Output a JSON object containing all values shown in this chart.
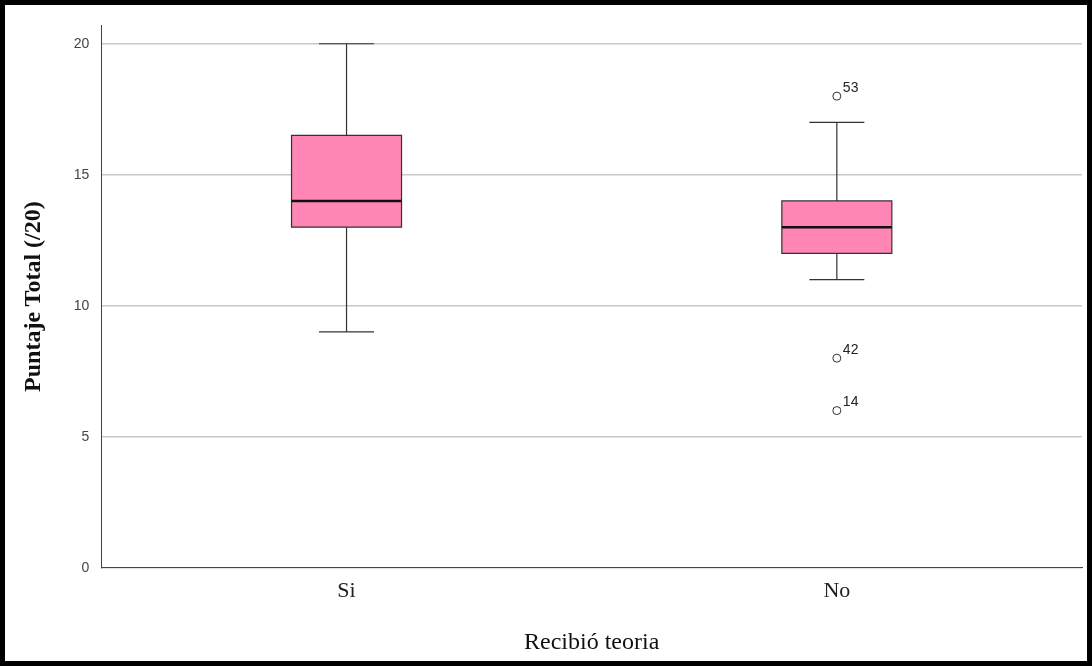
{
  "chart_data": {
    "type": "box",
    "categories": [
      "Si",
      "No"
    ],
    "xlabel": "Recibió teoria",
    "ylabel": "Puntaje Total (/20)",
    "series": [
      {
        "color": "#ff85b4",
        "boxes": [
          {
            "low": 9,
            "q1": 13,
            "median": 14,
            "q3": 16.5,
            "high": 20
          },
          {
            "low": 11,
            "q1": 12,
            "median": 13,
            "q3": 14,
            "high": 17,
            "outliers": [
              18,
              8,
              6
            ]
          }
        ]
      }
    ],
    "ylim": [
      0,
      20.7
    ],
    "yticks": [
      0,
      5,
      10,
      15,
      20
    ],
    "grid": "y",
    "marker": "circle",
    "annotations": [
      "53",
      "42",
      "14"
    ]
  }
}
